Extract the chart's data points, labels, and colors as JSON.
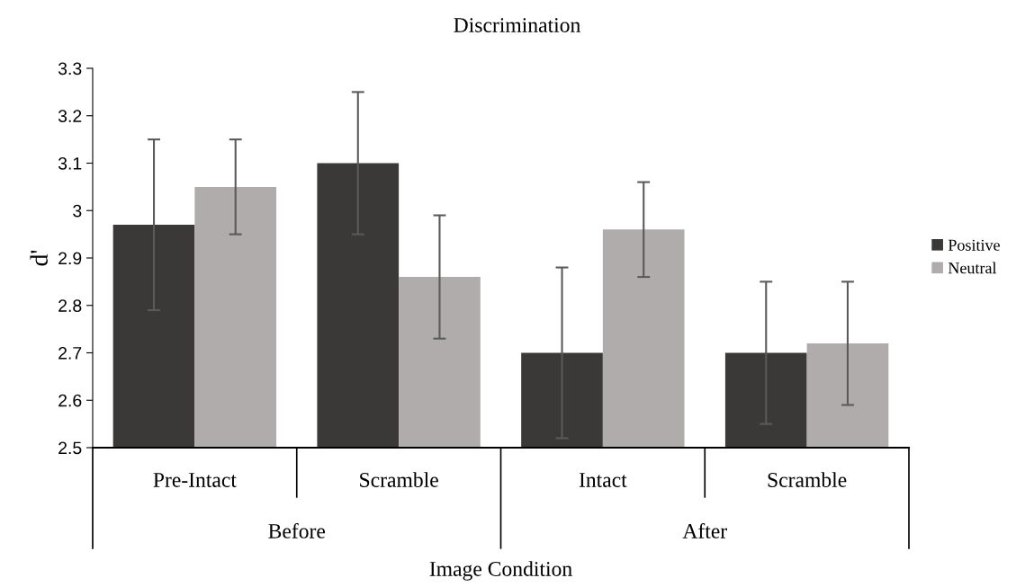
{
  "chart_data": {
    "type": "bar",
    "title": "Discrimination",
    "xlabel": "Image Condition",
    "ylabel": "d'",
    "categories": [
      "Pre-Intact",
      "Scramble",
      "Intact",
      "Scramble"
    ],
    "series": [
      {
        "name": "Positive",
        "color": "#3a3937",
        "values": [
          2.97,
          3.1,
          2.7,
          2.7
        ],
        "errors": [
          0.18,
          0.15,
          0.18,
          0.15
        ]
      },
      {
        "name": "Neutral",
        "color": "#afacab",
        "values": [
          3.05,
          2.86,
          2.96,
          2.72
        ],
        "errors": [
          0.1,
          0.13,
          0.1,
          0.13
        ]
      }
    ],
    "annotations": [
      "Before",
      "After"
    ],
    "ylim": [
      2.5,
      3.3
    ],
    "yticks": [
      2.5,
      2.6,
      2.7,
      2.8,
      2.9,
      3,
      3.1,
      3.2,
      3.3
    ],
    "grid": false,
    "legend": "right"
  }
}
